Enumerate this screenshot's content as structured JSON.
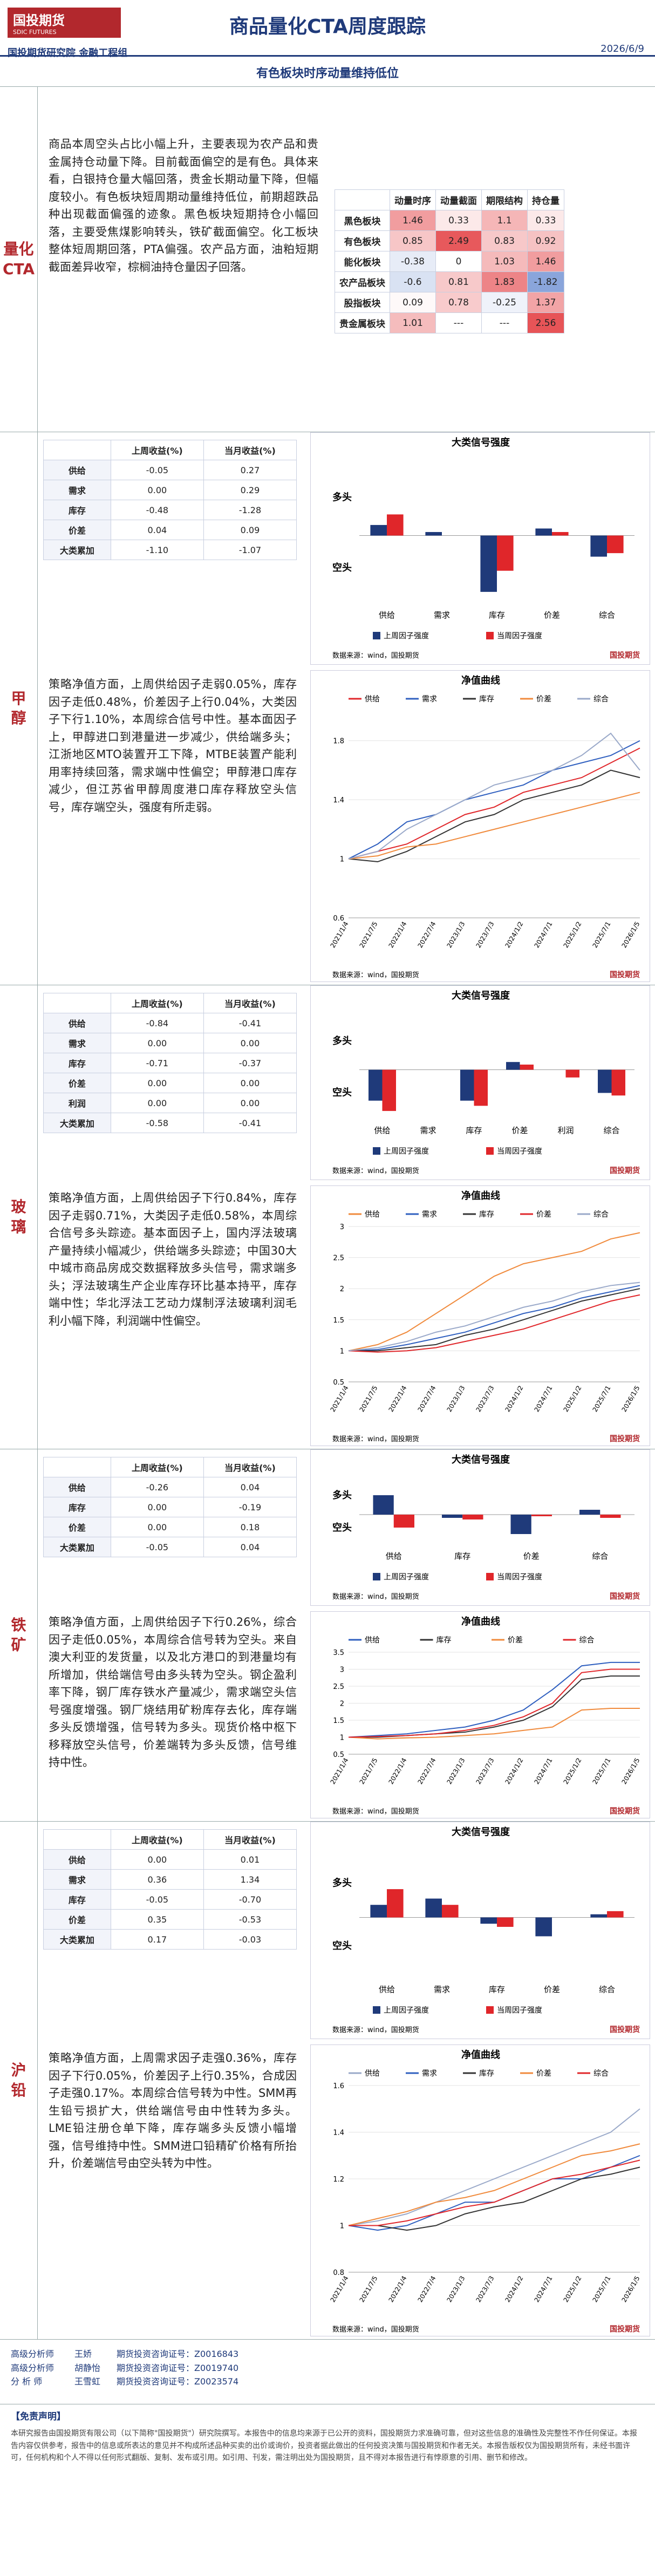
{
  "header": {
    "logo": "国投期货",
    "logo_en": "SDIC FUTURES",
    "title": "商品量化CTA周度跟踪",
    "date": "2026/6/9",
    "dept": "国投期货研究院 金融工程组"
  },
  "banner": "有色板块时序动量维持低位",
  "cta": {
    "label": "量化CTA",
    "text": "商品本周空头占比小幅上升，主要表现为农产品和贵金属持仓动量下降。目前截面偏空的是有色。具体来看，白银持仓量大幅回落，贵金长期动量下降，但幅度较小。有色板块短周期动量维持低位，前期超跌品种出现截面偏强的迹象。黑色板块短期持仓小幅回落，主要受焦煤影响转头，铁矿截面偏空。化工板块整体短周期回落，PTA偏强。农产品方面，油粕短期截面差异收窄，棕榈油持仓量因子回落。",
    "table": {
      "columns": [
        "",
        "动量时序",
        "动量截面",
        "期限结构",
        "持仓量"
      ],
      "rows": [
        {
          "name": "黑色板块",
          "values": [
            "1.46",
            "0.33",
            "1.1",
            "0.33"
          ]
        },
        {
          "name": "有色板块",
          "values": [
            "0.85",
            "2.49",
            "0.83",
            "0.92"
          ]
        },
        {
          "name": "能化板块",
          "values": [
            "-0.38",
            "0",
            "1.03",
            "1.46"
          ]
        },
        {
          "name": "农产品板块",
          "values": [
            "-0.6",
            "0.81",
            "1.83",
            "-1.82"
          ]
        },
        {
          "name": "股指板块",
          "values": [
            "0.09",
            "0.78",
            "-0.25",
            "1.37"
          ]
        },
        {
          "name": "贵金属板块",
          "values": [
            "1.01",
            "---",
            "---",
            "2.56"
          ]
        }
      ]
    }
  },
  "sections": [
    {
      "label": "甲醇",
      "table": {
        "columns": [
          "",
          "上周收益(%)",
          "当月收益(%)"
        ],
        "rows": [
          {
            "name": "供给",
            "values": [
              "-0.05",
              "0.27"
            ]
          },
          {
            "name": "需求",
            "values": [
              "0.00",
              "0.29"
            ]
          },
          {
            "name": "库存",
            "values": [
              "-0.48",
              "-1.28"
            ]
          },
          {
            "name": "价差",
            "values": [
              "0.04",
              "0.09"
            ]
          },
          {
            "name": "大类累加",
            "values": [
              "-1.10",
              "-1.07"
            ]
          }
        ]
      },
      "text": "策略净值方面，上周供给因子走弱0.05%，库存因子走低0.48%，价差因子上行0.04%，大类因子下行1.10%，本周综合信号中性。基本面因子上，甲醇进口到港量进一步减少，供给端多头；江浙地区MTO装置开工下降，MTBE装置产能利用率持续回落，需求端中性偏空；甲醇港口库存减少，但江苏省甲醇周度港口库存释放空头信号，库存端空头，强度有所走弱。",
      "bar_chart": {
        "type": "bar",
        "title": "大类信号强度",
        "pos_label": "多头",
        "neg_label": "空头",
        "categories": [
          "供给",
          "需求",
          "库存",
          "价差",
          "综合"
        ],
        "ylim": [
          -1,
          1
        ],
        "series": [
          {
            "name": "上周因子强度",
            "color": "#1f3a7a",
            "values": [
              0.15,
              0.05,
              -0.8,
              0.1,
              -0.3
            ]
          },
          {
            "name": "当周因子强度",
            "color": "#e0262a",
            "values": [
              0.3,
              0.0,
              -0.5,
              0.05,
              -0.25
            ]
          }
        ],
        "source": "数据来源：wind，国投期货"
      },
      "line_chart": {
        "type": "line",
        "title": "净值曲线",
        "categories": [
          "2021/1/4",
          "2021/7/5",
          "2022/1/4",
          "2022/7/4",
          "2023/1/3",
          "2023/7/3",
          "2024/1/2",
          "2024/7/1",
          "2025/1/2",
          "2025/7/1",
          "2026/1/5"
        ],
        "ylim": [
          0.6,
          2.0
        ],
        "yticks": [
          0.6,
          1,
          1.4,
          1.8
        ],
        "series": [
          {
            "name": "供给",
            "color": "#e0262a",
            "values": [
              1,
              1.05,
              1.1,
              1.2,
              1.3,
              1.35,
              1.45,
              1.5,
              1.55,
              1.65,
              1.75
            ]
          },
          {
            "name": "需求",
            "color": "#2f5fbf",
            "values": [
              1,
              1.1,
              1.25,
              1.3,
              1.4,
              1.45,
              1.5,
              1.6,
              1.65,
              1.7,
              1.8
            ]
          },
          {
            "name": "库存",
            "color": "#333333",
            "values": [
              1,
              0.98,
              1.05,
              1.15,
              1.25,
              1.3,
              1.4,
              1.45,
              1.5,
              1.6,
              1.55
            ]
          },
          {
            "name": "价差",
            "color": "#f08a3c",
            "values": [
              1,
              1.02,
              1.08,
              1.1,
              1.15,
              1.2,
              1.25,
              1.3,
              1.35,
              1.4,
              1.45
            ]
          },
          {
            "name": "综合",
            "color": "#9aa9c9",
            "values": [
              1,
              1.05,
              1.2,
              1.3,
              1.4,
              1.5,
              1.55,
              1.6,
              1.7,
              1.85,
              1.6
            ]
          }
        ],
        "source": "数据来源：wind，国投期货"
      }
    },
    {
      "label": "玻璃",
      "table": {
        "columns": [
          "",
          "上周收益(%)",
          "当月收益(%)"
        ],
        "rows": [
          {
            "name": "供给",
            "values": [
              "-0.84",
              "-0.41"
            ]
          },
          {
            "name": "需求",
            "values": [
              "0.00",
              "0.00"
            ]
          },
          {
            "name": "库存",
            "values": [
              "-0.71",
              "-0.37"
            ]
          },
          {
            "name": "价差",
            "values": [
              "0.00",
              "0.00"
            ]
          },
          {
            "name": "利润",
            "values": [
              "0.00",
              "0.00"
            ]
          },
          {
            "name": "大类累加",
            "values": [
              "-0.58",
              "-0.41"
            ]
          }
        ]
      },
      "text": "策略净值方面，上周供给因子下行0.84%，库存因子走弱0.71%，大类因子走低0.58%，本周综合信号多头踪迹。基本面因子上，国内浮法玻璃产量持续小幅减少，供给端多头踪迹；中国30大中城市商品房成交数据释放多头信号，需求端多头；浮法玻璃生产企业库存环比基本持平，库存端中性；华北浮法工艺动力煤制浮法玻璃利润毛利小幅下降，利润端中性偏空。",
      "bar_chart": {
        "type": "bar",
        "title": "大类信号强度",
        "pos_label": "多头",
        "neg_label": "空头",
        "categories": [
          "供给",
          "需求",
          "库存",
          "价差",
          "利润",
          "综合"
        ],
        "ylim": [
          -1,
          1
        ],
        "series": [
          {
            "name": "上周因子强度",
            "color": "#1f3a7a",
            "values": [
              -0.6,
              0.0,
              -0.6,
              0.15,
              0.0,
              -0.45
            ]
          },
          {
            "name": "当周因子强度",
            "color": "#e0262a",
            "values": [
              -0.8,
              0.0,
              -0.7,
              0.1,
              -0.15,
              -0.5
            ]
          }
        ],
        "source": "数据来源：wind，国投期货"
      },
      "line_chart": {
        "type": "line",
        "title": "净值曲线",
        "categories": [
          "2021/1/4",
          "2021/7/5",
          "2022/1/4",
          "2022/7/4",
          "2023/1/3",
          "2023/7/3",
          "2024/1/2",
          "2024/7/1",
          "2025/1/2",
          "2025/7/1",
          "2026/1/5"
        ],
        "ylim": [
          0.5,
          3.0
        ],
        "yticks": [
          0.5,
          1,
          1.5,
          2,
          2.5,
          3
        ],
        "series": [
          {
            "name": "供给",
            "color": "#f08a3c",
            "values": [
              1,
              1.1,
              1.3,
              1.6,
              1.9,
              2.2,
              2.4,
              2.5,
              2.6,
              2.8,
              2.9
            ]
          },
          {
            "name": "需求",
            "color": "#2f5fbf",
            "values": [
              1,
              1.02,
              1.1,
              1.2,
              1.3,
              1.45,
              1.6,
              1.7,
              1.85,
              1.95,
              2.05
            ]
          },
          {
            "name": "库存",
            "color": "#333333",
            "values": [
              1,
              1.0,
              1.05,
              1.1,
              1.25,
              1.35,
              1.5,
              1.65,
              1.8,
              1.9,
              2.0
            ]
          },
          {
            "name": "价差",
            "color": "#e0262a",
            "values": [
              1,
              0.98,
              1.0,
              1.05,
              1.15,
              1.25,
              1.35,
              1.5,
              1.65,
              1.8,
              1.9
            ]
          },
          {
            "name": "综合",
            "color": "#9aa9c9",
            "values": [
              1,
              1.05,
              1.15,
              1.3,
              1.4,
              1.55,
              1.7,
              1.8,
              1.95,
              2.05,
              2.1
            ]
          }
        ],
        "source": "数据来源：wind，国投期货"
      }
    },
    {
      "label": "铁矿",
      "table": {
        "columns": [
          "",
          "上周收益(%)",
          "当月收益(%)"
        ],
        "rows": [
          {
            "name": "供给",
            "values": [
              "-0.26",
              "0.04"
            ]
          },
          {
            "name": "库存",
            "values": [
              "0.00",
              "-0.19"
            ]
          },
          {
            "name": "价差",
            "values": [
              "0.00",
              "0.18"
            ]
          },
          {
            "name": "大类累加",
            "values": [
              "-0.05",
              "0.04"
            ]
          }
        ]
      },
      "text": "策略净值方面，上周供给因子下行0.26%，综合因子走低0.05%，本周综合信号转为空头。来自澳大利亚的发货量，以及北方港口的到港量均有所增加，供给端信号由多头转为空头。钢企盈利率下降，钢厂库存铁水产量减少，需求端空头信号强度增强。钢厂烧结用矿粉库存去化，库存端多头反馈增强，信号转为多头。现货价格中枢下移释放空头信号，价差端转为多头反馈，信号维持中性。",
      "bar_chart": {
        "type": "bar",
        "title": "大类信号强度",
        "pos_label": "多头",
        "neg_label": "空头",
        "categories": [
          "供给",
          "库存",
          "价差",
          "综合"
        ],
        "ylim": [
          -1,
          1
        ],
        "series": [
          {
            "name": "上周因子强度",
            "color": "#1f3a7a",
            "values": [
              0.6,
              -0.1,
              -0.6,
              0.15
            ]
          },
          {
            "name": "当周因子强度",
            "color": "#e0262a",
            "values": [
              -0.4,
              -0.15,
              -0.05,
              -0.1
            ]
          }
        ],
        "source": "数据来源：wind，国投期货"
      },
      "line_chart": {
        "type": "line",
        "title": "净值曲线",
        "categories": [
          "2021/1/4",
          "2021/7/5",
          "2022/1/4",
          "2022/7/4",
          "2023/1/3",
          "2023/7/3",
          "2024/1/2",
          "2024/7/1",
          "2025/1/2",
          "2025/7/1",
          "2026/1/5"
        ],
        "ylim": [
          0.5,
          3.5
        ],
        "yticks": [
          0.5,
          1,
          1.5,
          2,
          2.5,
          3,
          3.5
        ],
        "series": [
          {
            "name": "供给",
            "color": "#2f5fbf",
            "values": [
              1,
              1.05,
              1.1,
              1.2,
              1.3,
              1.5,
              1.8,
              2.4,
              3.1,
              3.2,
              3.2
            ]
          },
          {
            "name": "库存",
            "color": "#333333",
            "values": [
              1,
              1.0,
              1.05,
              1.1,
              1.15,
              1.3,
              1.5,
              1.9,
              2.7,
              2.8,
              2.8
            ]
          },
          {
            "name": "价差",
            "color": "#f08a3c",
            "values": [
              1,
              0.95,
              0.98,
              1.0,
              1.05,
              1.1,
              1.2,
              1.3,
              1.8,
              1.85,
              1.85
            ]
          },
          {
            "name": "综合",
            "color": "#e0262a",
            "values": [
              1,
              1.02,
              1.05,
              1.1,
              1.2,
              1.35,
              1.6,
              2.0,
              2.9,
              3.0,
              3.0
            ]
          }
        ],
        "source": "数据来源：wind，国投期货"
      }
    },
    {
      "label": "沪铅",
      "table": {
        "columns": [
          "",
          "上周收益(%)",
          "当月收益(%)"
        ],
        "rows": [
          {
            "name": "供给",
            "values": [
              "0.00",
              "0.01"
            ]
          },
          {
            "name": "需求",
            "values": [
              "0.36",
              "1.34"
            ]
          },
          {
            "name": "库存",
            "values": [
              "-0.05",
              "-0.70"
            ]
          },
          {
            "name": "价差",
            "values": [
              "0.35",
              "-0.53"
            ]
          },
          {
            "name": "大类累加",
            "values": [
              "0.17",
              "-0.03"
            ]
          }
        ]
      },
      "text": "策略净值方面，上周需求因子走强0.36%，库存因子下行0.05%，价差因子上行0.35%，合成因子走强0.17%。本周综合信号转为中性。SMM再生铅亏损扩大，供给端信号由中性转为多头。LME铅注册仓单下降，库存端多头反馈小幅增强，信号维持中性。SMM进口铅精矿价格有所抬升，价差端信号由空头转为中性。",
      "bar_chart": {
        "type": "bar",
        "title": "大类信号强度",
        "pos_label": "多头",
        "neg_label": "空头",
        "categories": [
          "供给",
          "需求",
          "库存",
          "价差",
          "综合"
        ],
        "ylim": [
          -1,
          1
        ],
        "series": [
          {
            "name": "上周因子强度",
            "color": "#1f3a7a",
            "values": [
              0.2,
              0.3,
              -0.1,
              -0.3,
              0.05
            ]
          },
          {
            "name": "当周因子强度",
            "color": "#e0262a",
            "values": [
              0.45,
              0.2,
              -0.15,
              0.0,
              0.1
            ]
          }
        ],
        "source": "数据来源：wind，国投期货"
      },
      "line_chart": {
        "type": "line",
        "title": "净值曲线",
        "categories": [
          "2021/1/4",
          "2021/7/5",
          "2022/1/4",
          "2022/7/4",
          "2023/1/3",
          "2023/7/3",
          "2024/1/2",
          "2024/7/1",
          "2025/1/2",
          "2025/7/1",
          "2026/1/5"
        ],
        "ylim": [
          0.8,
          1.6
        ],
        "yticks": [
          0.8,
          1,
          1.2,
          1.4,
          1.6
        ],
        "series": [
          {
            "name": "供给",
            "color": "#9aa9c9",
            "values": [
              1,
              1.02,
              1.05,
              1.1,
              1.15,
              1.2,
              1.25,
              1.3,
              1.35,
              1.4,
              1.5
            ]
          },
          {
            "name": "需求",
            "color": "#2f5fbf",
            "values": [
              1,
              0.98,
              1.0,
              1.05,
              1.1,
              1.1,
              1.15,
              1.2,
              1.2,
              1.25,
              1.3
            ]
          },
          {
            "name": "库存",
            "color": "#333333",
            "values": [
              1,
              1.0,
              0.98,
              1.0,
              1.05,
              1.08,
              1.1,
              1.15,
              1.2,
              1.22,
              1.25
            ]
          },
          {
            "name": "价差",
            "color": "#f08a3c",
            "values": [
              1,
              1.03,
              1.06,
              1.1,
              1.12,
              1.15,
              1.2,
              1.25,
              1.3,
              1.32,
              1.35
            ]
          },
          {
            "name": "综合",
            "color": "#e0262a",
            "values": [
              1,
              1.0,
              1.02,
              1.05,
              1.08,
              1.1,
              1.15,
              1.2,
              1.22,
              1.25,
              1.28
            ]
          }
        ],
        "source": "数据来源：wind，国投期货"
      }
    }
  ],
  "analysts": [
    {
      "role": "高级分析师",
      "name": "王娇",
      "cert": "期货投资咨询证号：Z0016843"
    },
    {
      "role": "高级分析师",
      "name": "胡静怡",
      "cert": "期货投资咨询证号：Z0019740"
    },
    {
      "role": "分 析 师",
      "name": "王雪虹",
      "cert": "期货投资咨询证号：Z0023574"
    }
  ],
  "disclaimer": {
    "title": "【免责声明】",
    "text": "本研究报告由国投期货有限公司（以下简称\"国投期货\"）研究院撰写。本报告中的信息均来源于已公开的资料，国投期货力求准确可靠，但对这些信息的准确性及完整性不作任何保证。本报告内容仅供参考，报告中的信息或所表达的意见并不构成所述品种买卖的出价或询价，投资者据此做出的任何投资决策与国投期货和作者无关。本报告版权仅为国投期货所有，未经书面许可，任何机构和个人不得以任何形式翻版、复制、发布或引用。如引用、刊发，需注明出处为国投期货，且不得对本报告进行有悖原意的引用、删节和修改。"
  }
}
